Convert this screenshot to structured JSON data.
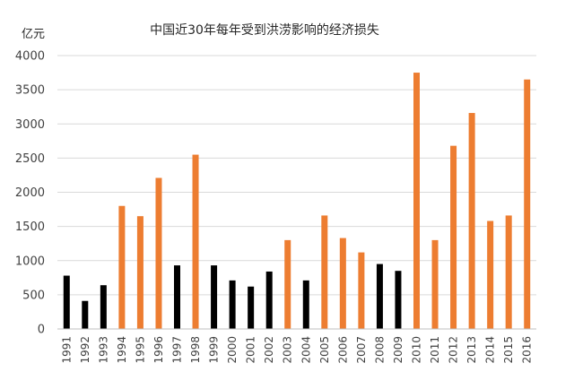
{
  "chart_data": {
    "type": "bar",
    "title": "中国近30年每年受到洪涝影响的经济损失",
    "ylabel": "亿元",
    "xlabel": "",
    "ylim": [
      0,
      4000
    ],
    "yticks": [
      0,
      500,
      1000,
      1500,
      2000,
      2500,
      3000,
      3500,
      4000
    ],
    "grid": true,
    "legend": "none",
    "colors": {
      "black": "#000000",
      "orange": "#ed7d31"
    },
    "categories": [
      "1991",
      "1992",
      "1993",
      "1994",
      "1995",
      "1996",
      "1997",
      "1998",
      "1999",
      "2000",
      "2001",
      "2002",
      "2003",
      "2004",
      "2005",
      "2006",
      "2007",
      "2008",
      "2009",
      "2010",
      "2011",
      "2012",
      "2013",
      "2014",
      "2015",
      "2016"
    ],
    "values": [
      780,
      410,
      640,
      1800,
      1650,
      2210,
      930,
      2550,
      930,
      710,
      620,
      840,
      1300,
      710,
      1660,
      1330,
      1120,
      950,
      850,
      3750,
      1300,
      2680,
      3160,
      1580,
      1660,
      3650
    ],
    "bar_colors": [
      "black",
      "black",
      "black",
      "orange",
      "orange",
      "orange",
      "black",
      "orange",
      "black",
      "black",
      "black",
      "black",
      "orange",
      "black",
      "orange",
      "orange",
      "orange",
      "black",
      "black",
      "orange",
      "orange",
      "orange",
      "orange",
      "orange",
      "orange",
      "orange"
    ]
  }
}
